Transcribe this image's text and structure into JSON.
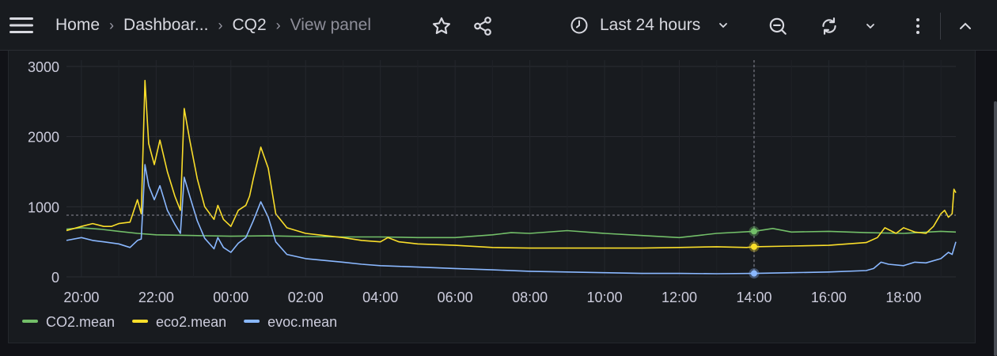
{
  "breadcrumb": {
    "items": [
      {
        "label": "Home"
      },
      {
        "label": "Dashboar..."
      },
      {
        "label": "CQ2"
      },
      {
        "label": "View panel"
      }
    ]
  },
  "toolbar": {
    "time_range": "Last 24 hours"
  },
  "icons": {
    "menu": "hamburger-icon",
    "star": "star-icon",
    "share": "share-icon",
    "clock": "clock-icon",
    "zoom_out": "zoom-out-icon",
    "refresh": "refresh-icon",
    "more": "kebab-icon",
    "collapse": "chevron-up-icon"
  },
  "colors": {
    "co2": "#73bf69",
    "eco2": "#fade2a",
    "evoc": "#8ab8ff"
  },
  "chart_data": {
    "type": "line",
    "x_ticks": [
      "20:00",
      "22:00",
      "00:00",
      "02:00",
      "04:00",
      "06:00",
      "08:00",
      "10:00",
      "12:00",
      "14:00",
      "16:00",
      "18:00"
    ],
    "y_ticks": [
      "0",
      "1000",
      "2000",
      "3000"
    ],
    "ylim": [
      0,
      3000
    ],
    "xlim_hours": [
      19.6,
      43.4
    ],
    "grid": true,
    "legend_position": "bottom-left",
    "crosshair": {
      "x_hour": 38.0,
      "y_value": 880
    },
    "series": [
      {
        "name": "CO2.mean",
        "color": "#73bf69",
        "points": [
          [
            19.6,
            680
          ],
          [
            20.0,
            700
          ],
          [
            20.5,
            680
          ],
          [
            21.0,
            650
          ],
          [
            21.5,
            620
          ],
          [
            22.0,
            600
          ],
          [
            23.0,
            590
          ],
          [
            24.0,
            580
          ],
          [
            25.0,
            585
          ],
          [
            26.0,
            575
          ],
          [
            27.0,
            570
          ],
          [
            28.0,
            570
          ],
          [
            29.0,
            560
          ],
          [
            30.0,
            560
          ],
          [
            31.0,
            600
          ],
          [
            31.5,
            630
          ],
          [
            32.0,
            620
          ],
          [
            33.0,
            660
          ],
          [
            34.0,
            620
          ],
          [
            35.0,
            590
          ],
          [
            36.0,
            560
          ],
          [
            37.0,
            620
          ],
          [
            38.0,
            650
          ],
          [
            38.5,
            690
          ],
          [
            39.0,
            640
          ],
          [
            40.0,
            650
          ],
          [
            41.0,
            630
          ],
          [
            42.0,
            620
          ],
          [
            43.0,
            650
          ],
          [
            43.4,
            640
          ]
        ]
      },
      {
        "name": "eco2.mean",
        "color": "#fade2a",
        "points": [
          [
            19.6,
            660
          ],
          [
            20.0,
            720
          ],
          [
            20.3,
            760
          ],
          [
            20.6,
            720
          ],
          [
            20.8,
            720
          ],
          [
            21.0,
            760
          ],
          [
            21.3,
            780
          ],
          [
            21.5,
            1100
          ],
          [
            21.6,
            900
          ],
          [
            21.7,
            2800
          ],
          [
            21.8,
            1900
          ],
          [
            21.95,
            1600
          ],
          [
            22.1,
            1950
          ],
          [
            22.3,
            1500
          ],
          [
            22.5,
            1150
          ],
          [
            22.65,
            950
          ],
          [
            22.75,
            2400
          ],
          [
            22.9,
            1950
          ],
          [
            23.1,
            1400
          ],
          [
            23.3,
            1000
          ],
          [
            23.55,
            820
          ],
          [
            23.65,
            1020
          ],
          [
            23.8,
            820
          ],
          [
            24.0,
            720
          ],
          [
            24.2,
            950
          ],
          [
            24.4,
            1020
          ],
          [
            24.5,
            1150
          ],
          [
            24.6,
            1400
          ],
          [
            24.8,
            1850
          ],
          [
            25.0,
            1550
          ],
          [
            25.2,
            900
          ],
          [
            25.5,
            700
          ],
          [
            26.0,
            620
          ],
          [
            26.5,
            590
          ],
          [
            27.0,
            560
          ],
          [
            27.5,
            520
          ],
          [
            28.0,
            500
          ],
          [
            28.2,
            560
          ],
          [
            28.5,
            500
          ],
          [
            29.0,
            470
          ],
          [
            30.0,
            450
          ],
          [
            31.0,
            420
          ],
          [
            32.0,
            410
          ],
          [
            33.0,
            410
          ],
          [
            34.0,
            410
          ],
          [
            35.0,
            410
          ],
          [
            36.0,
            420
          ],
          [
            37.0,
            430
          ],
          [
            37.8,
            420
          ],
          [
            38.0,
            430
          ],
          [
            39.0,
            440
          ],
          [
            40.0,
            450
          ],
          [
            41.0,
            490
          ],
          [
            41.3,
            560
          ],
          [
            41.5,
            700
          ],
          [
            41.8,
            620
          ],
          [
            42.0,
            700
          ],
          [
            42.3,
            640
          ],
          [
            42.6,
            620
          ],
          [
            42.8,
            720
          ],
          [
            43.0,
            900
          ],
          [
            43.1,
            950
          ],
          [
            43.2,
            850
          ],
          [
            43.3,
            900
          ],
          [
            43.35,
            1250
          ],
          [
            43.4,
            1200
          ]
        ]
      },
      {
        "name": "evoc.mean",
        "color": "#8ab8ff",
        "points": [
          [
            19.6,
            520
          ],
          [
            20.0,
            560
          ],
          [
            20.3,
            520
          ],
          [
            20.6,
            500
          ],
          [
            21.0,
            470
          ],
          [
            21.3,
            420
          ],
          [
            21.5,
            520
          ],
          [
            21.6,
            540
          ],
          [
            21.7,
            1600
          ],
          [
            21.8,
            1300
          ],
          [
            21.95,
            1100
          ],
          [
            22.1,
            1300
          ],
          [
            22.3,
            950
          ],
          [
            22.5,
            750
          ],
          [
            22.65,
            620
          ],
          [
            22.75,
            1420
          ],
          [
            22.9,
            1150
          ],
          [
            23.1,
            800
          ],
          [
            23.3,
            550
          ],
          [
            23.55,
            400
          ],
          [
            23.65,
            560
          ],
          [
            23.8,
            420
          ],
          [
            24.0,
            350
          ],
          [
            24.2,
            480
          ],
          [
            24.4,
            560
          ],
          [
            24.6,
            800
          ],
          [
            24.8,
            1070
          ],
          [
            25.0,
            850
          ],
          [
            25.2,
            500
          ],
          [
            25.5,
            320
          ],
          [
            26.0,
            260
          ],
          [
            27.0,
            210
          ],
          [
            27.5,
            180
          ],
          [
            28.0,
            160
          ],
          [
            28.5,
            150
          ],
          [
            29.0,
            140
          ],
          [
            30.0,
            120
          ],
          [
            31.0,
            100
          ],
          [
            32.0,
            80
          ],
          [
            33.0,
            70
          ],
          [
            34.0,
            60
          ],
          [
            35.0,
            50
          ],
          [
            36.0,
            50
          ],
          [
            37.0,
            45
          ],
          [
            38.0,
            50
          ],
          [
            39.0,
            60
          ],
          [
            40.0,
            70
          ],
          [
            41.0,
            90
          ],
          [
            41.2,
            120
          ],
          [
            41.4,
            210
          ],
          [
            41.6,
            180
          ],
          [
            42.0,
            160
          ],
          [
            42.3,
            210
          ],
          [
            42.6,
            200
          ],
          [
            43.0,
            260
          ],
          [
            43.2,
            350
          ],
          [
            43.3,
            320
          ],
          [
            43.4,
            500
          ]
        ]
      }
    ]
  }
}
